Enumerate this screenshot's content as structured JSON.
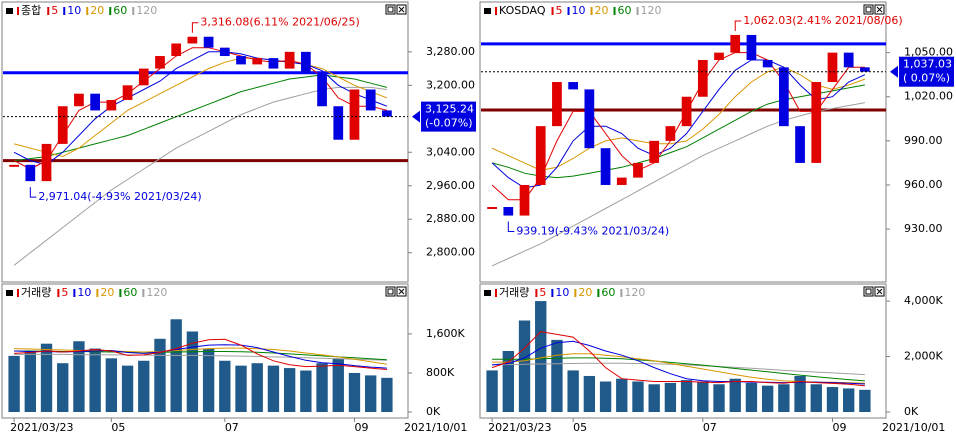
{
  "chart_data": [
    {
      "type": "price",
      "legend_title": "종합",
      "ylim": [
        2730,
        3380
      ],
      "yticks": [
        {
          "value": 3280,
          "label": "3,280.00"
        },
        {
          "value": 3200,
          "label": "3,200.00"
        },
        {
          "value": 3040,
          "label": "3,040.00"
        },
        {
          "value": 2960,
          "label": "2,960.00"
        },
        {
          "value": 2880,
          "label": "2,880.00"
        },
        {
          "value": 2800,
          "label": "2,800.00"
        }
      ],
      "hlines": [
        {
          "value": 3230,
          "color": "#0000ff"
        },
        {
          "value": 3020,
          "color": "#800000"
        }
      ],
      "max_label": "3,316.08(6.11% 2021/06/25)",
      "min_label": "2,971.04(-4.93% 2021/03/24)",
      "last_label": [
        "3,125.24",
        "(-0.07%)"
      ],
      "series": [
        {
          "name": "5",
          "color": "#e00000",
          "values": [
            3020,
            3000,
            3020,
            3080,
            3140,
            3160,
            3160,
            3180,
            3210,
            3240,
            3270,
            3290,
            3290,
            3280,
            3270,
            3260,
            3255,
            3260,
            3250,
            3220,
            3170,
            3150,
            3150,
            3140
          ]
        },
        {
          "name": "10",
          "color": "#0000e0",
          "values": [
            3040,
            3020,
            3010,
            3040,
            3080,
            3120,
            3150,
            3170,
            3190,
            3210,
            3240,
            3260,
            3280,
            3280,
            3275,
            3265,
            3260,
            3255,
            3250,
            3235,
            3200,
            3180,
            3165,
            3150
          ]
        },
        {
          "name": "20",
          "color": "#d89800",
          "values": [
            3060,
            3050,
            3040,
            3030,
            3050,
            3080,
            3110,
            3140,
            3160,
            3180,
            3200,
            3220,
            3240,
            3255,
            3265,
            3265,
            3260,
            3255,
            3250,
            3240,
            3220,
            3200,
            3185,
            3170
          ]
        },
        {
          "name": "60",
          "color": "#008000",
          "values": [
            3020,
            3025,
            3030,
            3040,
            3050,
            3060,
            3070,
            3080,
            3095,
            3110,
            3125,
            3140,
            3155,
            3170,
            3185,
            3195,
            3205,
            3215,
            3220,
            3225,
            3220,
            3215,
            3205,
            3195
          ]
        },
        {
          "name": "120",
          "color": "#a0a0a0",
          "values": [
            2770,
            2800,
            2830,
            2860,
            2890,
            2920,
            2950,
            2975,
            3000,
            3025,
            3050,
            3070,
            3090,
            3110,
            3130,
            3145,
            3160,
            3170,
            3180,
            3190,
            3195,
            3195,
            3195,
            3190
          ]
        }
      ],
      "close": [
        3010,
        2971.04,
        3060,
        3150,
        3180,
        3140,
        3165,
        3200,
        3240,
        3270,
        3300,
        3316.08,
        3290,
        3270,
        3250,
        3265,
        3240,
        3280,
        3230,
        3150,
        3070,
        3190,
        3140,
        3125.24
      ]
    },
    {
      "type": "volume",
      "legend_title": "거래량",
      "ylim": [
        0,
        2500
      ],
      "yticks": [
        {
          "value": 1600,
          "label": "1,600K"
        },
        {
          "value": 800,
          "label": "800K"
        },
        {
          "value": 0,
          "label": "0K"
        }
      ],
      "categories": [
        "2021/03/23",
        null,
        null,
        null,
        null,
        null,
        "05",
        null,
        null,
        null,
        null,
        null,
        null,
        "07",
        null,
        null,
        null,
        null,
        null,
        null,
        null,
        "09",
        null,
        null
      ],
      "x_end_label": "2021/10/01",
      "bar_color": "#1f5a8a",
      "bars": [
        1150,
        1250,
        1400,
        1000,
        1450,
        1300,
        1100,
        950,
        1050,
        1500,
        1900,
        1650,
        1300,
        1050,
        950,
        1000,
        950,
        900,
        850,
        1000,
        1100,
        800,
        750,
        700
      ],
      "series": [
        {
          "name": "5",
          "color": "#e00000",
          "values": [
            1200,
            1220,
            1250,
            1230,
            1250,
            1280,
            1250,
            1160,
            1170,
            1220,
            1300,
            1410,
            1480,
            1490,
            1370,
            1190,
            1050,
            970,
            930,
            940,
            960,
            930,
            900,
            870
          ]
        },
        {
          "name": "10",
          "color": "#0000e0",
          "values": [
            1250,
            1240,
            1240,
            1230,
            1240,
            1250,
            1260,
            1220,
            1200,
            1230,
            1280,
            1330,
            1370,
            1380,
            1370,
            1320,
            1230,
            1140,
            1060,
            1010,
            990,
            950,
            920,
            900
          ]
        },
        {
          "name": "20",
          "color": "#d89800",
          "values": [
            1300,
            1290,
            1280,
            1270,
            1260,
            1260,
            1250,
            1240,
            1230,
            1240,
            1260,
            1280,
            1300,
            1310,
            1310,
            1300,
            1280,
            1250,
            1210,
            1170,
            1130,
            1080,
            1030,
            980
          ]
        },
        {
          "name": "60",
          "color": "#008000",
          "values": [
            1250,
            1250,
            1245,
            1240,
            1240,
            1235,
            1230,
            1230,
            1225,
            1225,
            1230,
            1235,
            1240,
            1240,
            1235,
            1225,
            1210,
            1190,
            1170,
            1150,
            1130,
            1110,
            1090,
            1070
          ]
        },
        {
          "name": "120",
          "color": "#a0a0a0",
          "values": [
            1180,
            1180,
            1180,
            1180,
            1175,
            1175,
            1170,
            1170,
            1165,
            1160,
            1160,
            1160,
            1155,
            1150,
            1145,
            1140,
            1130,
            1120,
            1110,
            1100,
            1090,
            1080,
            1070,
            1060
          ]
        }
      ]
    },
    {
      "type": "price",
      "legend_title": "KOSDAQ",
      "ylim": [
        894,
        1079
      ],
      "yticks": [
        {
          "value": 1050,
          "label": "1,050.00"
        },
        {
          "value": 1020,
          "label": "1,020.00"
        },
        {
          "value": 990,
          "label": "990.00"
        },
        {
          "value": 960,
          "label": "960.00"
        },
        {
          "value": 930,
          "label": "930.00"
        }
      ],
      "hlines": [
        {
          "value": 1056,
          "color": "#0000ff"
        },
        {
          "value": 1011,
          "color": "#800000"
        }
      ],
      "max_label": "1,062.03(2.41% 2021/08/06)",
      "min_label": "939.19(-9.43% 2021/03/24)",
      "last_label": [
        "1,037.03",
        "( 0.07%)"
      ],
      "series": [
        {
          "name": "5",
          "color": "#e00000",
          "values": [
            960,
            950,
            950,
            965,
            990,
            1010,
            1010,
            995,
            980,
            970,
            975,
            990,
            1010,
            1030,
            1045,
            1050,
            1050,
            1045,
            1030,
            1010,
            1010,
            1025,
            1040,
            1040
          ]
        },
        {
          "name": "10",
          "color": "#0000e0",
          "values": [
            975,
            965,
            958,
            960,
            972,
            990,
            1000,
            1000,
            995,
            985,
            980,
            985,
            995,
            1010,
            1025,
            1038,
            1045,
            1045,
            1040,
            1028,
            1018,
            1020,
            1030,
            1035
          ]
        },
        {
          "name": "20",
          "color": "#d89800",
          "values": [
            985,
            980,
            975,
            970,
            972,
            978,
            985,
            990,
            992,
            990,
            988,
            988,
            990,
            998,
            1008,
            1020,
            1030,
            1037,
            1040,
            1035,
            1028,
            1025,
            1028,
            1032
          ]
        },
        {
          "name": "60",
          "color": "#008000",
          "values": [
            975,
            972,
            968,
            966,
            965,
            966,
            968,
            970,
            972,
            975,
            978,
            982,
            986,
            992,
            998,
            1004,
            1010,
            1015,
            1018,
            1020,
            1022,
            1024,
            1026,
            1028
          ]
        },
        {
          "name": "120",
          "color": "#a0a0a0",
          "values": [
            905,
            910,
            915,
            920,
            926,
            932,
            938,
            944,
            950,
            956,
            962,
            968,
            974,
            980,
            985,
            990,
            995,
            1000,
            1004,
            1007,
            1010,
            1012,
            1014,
            1016
          ]
        }
      ],
      "close": [
        945,
        939.19,
        960,
        1000,
        1030,
        1025,
        985,
        960,
        965,
        975,
        990,
        1000,
        1020,
        1045,
        1050,
        1062.03,
        1045,
        1040,
        1000,
        975,
        1030,
        1050,
        1040,
        1037.03
      ]
    },
    {
      "type": "volume",
      "legend_title": "거래량",
      "ylim": [
        0,
        4400
      ],
      "yticks": [
        {
          "value": 4000,
          "label": "4,000K"
        },
        {
          "value": 2000,
          "label": "2,000K"
        },
        {
          "value": 0,
          "label": "0K"
        }
      ],
      "categories": [
        "2021/03/23",
        null,
        null,
        null,
        null,
        "05",
        null,
        null,
        null,
        null,
        null,
        null,
        null,
        "07",
        null,
        null,
        null,
        null,
        null,
        null,
        null,
        "09",
        null,
        null
      ],
      "x_end_label": "2021/10/01",
      "bar_color": "#1f5a8a",
      "bars": [
        1500,
        2200,
        3300,
        4000,
        2600,
        1500,
        1300,
        1100,
        1200,
        1100,
        1000,
        1050,
        1150,
        1100,
        1000,
        1200,
        1050,
        950,
        1000,
        1300,
        1000,
        900,
        850,
        800
      ],
      "series": [
        {
          "name": "5",
          "color": "#e00000",
          "values": [
            1600,
            1800,
            2300,
            2900,
            2800,
            2700,
            2200,
            1600,
            1200,
            1150,
            1100,
            1100,
            1100,
            1080,
            1060,
            1100,
            1100,
            1060,
            1040,
            1100,
            1060,
            1030,
            1000,
            950
          ]
        },
        {
          "name": "10",
          "color": "#0000e0",
          "values": [
            1700,
            1750,
            1950,
            2300,
            2500,
            2550,
            2400,
            2200,
            2050,
            1850,
            1600,
            1380,
            1200,
            1130,
            1100,
            1100,
            1080,
            1070,
            1060,
            1070,
            1080,
            1060,
            1040,
            1010
          ]
        },
        {
          "name": "20",
          "color": "#d89800",
          "values": [
            1800,
            1800,
            1850,
            1950,
            2050,
            2100,
            2100,
            2050,
            1990,
            1920,
            1850,
            1750,
            1650,
            1550,
            1450,
            1350,
            1250,
            1180,
            1120,
            1100,
            1080,
            1070,
            1060,
            1040
          ]
        },
        {
          "name": "60",
          "color": "#008000",
          "values": [
            1900,
            1900,
            1900,
            1920,
            1940,
            1950,
            1950,
            1940,
            1920,
            1880,
            1840,
            1790,
            1740,
            1690,
            1630,
            1570,
            1510,
            1450,
            1390,
            1330,
            1270,
            1220,
            1170,
            1120
          ]
        },
        {
          "name": "120",
          "color": "#a0a0a0",
          "values": [
            1700,
            1710,
            1720,
            1730,
            1740,
            1750,
            1760,
            1760,
            1760,
            1750,
            1740,
            1720,
            1700,
            1670,
            1640,
            1610,
            1580,
            1540,
            1500,
            1470,
            1440,
            1410,
            1380,
            1350
          ]
        }
      ]
    }
  ]
}
